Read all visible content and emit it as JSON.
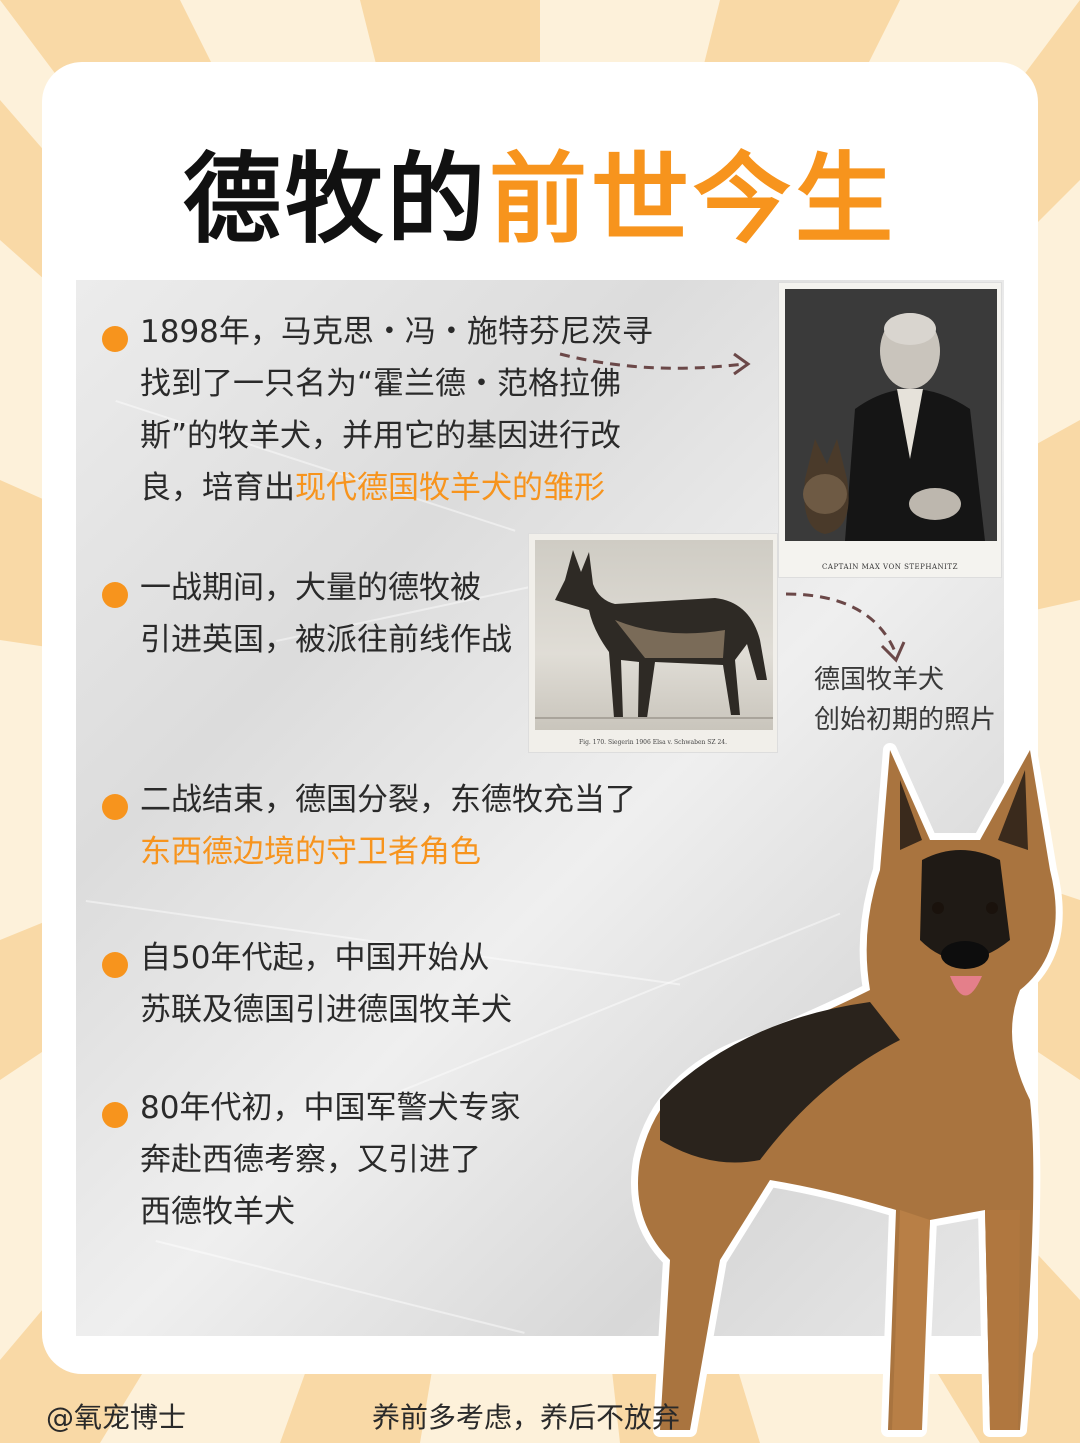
{
  "title": {
    "part1": "德牧的",
    "part2": "前世今生"
  },
  "bullets": [
    {
      "lines": [
        "1898年，马克思・冯・施特芬尼茨寻",
        "找到了一只名为“霍兰德・范格拉佛",
        "斯”的牧羊犬，并用它的基因进行改"
      ],
      "last_plain": "良，培育出",
      "last_highlight": "现代德国牧羊犬的雏形"
    },
    {
      "lines": [
        "一战期间，大量的德牧被",
        "引进英国，被派往前线作战"
      ]
    },
    {
      "lines": [
        "二战结束，德国分裂，东德牧充当了"
      ],
      "highlight_line": "东西德边境的守卫者角色"
    },
    {
      "lines": [
        "自50年代起，中国开始从",
        "苏联及德国引进德国牧羊犬"
      ]
    },
    {
      "lines": [
        "80年代初，中国军警犬专家",
        "奔赴西德考察，又引进了",
        "西德牧羊犬"
      ]
    }
  ],
  "photos": {
    "portrait_caption": "CAPTAIN MAX VON STEPHANITZ",
    "dog_caption": "Fig. 170. Siegerin 1906 Elsa v. Schwaben SZ 24.",
    "note_line1": "德国牧羊犬",
    "note_line2": "创始初期的照片"
  },
  "footer": {
    "account": "@氧宠博士",
    "slogan": "养前多考虑，养后不放弃"
  },
  "colors": {
    "accent": "#f7941d",
    "text": "#2a2a2a",
    "title": "#111111"
  }
}
